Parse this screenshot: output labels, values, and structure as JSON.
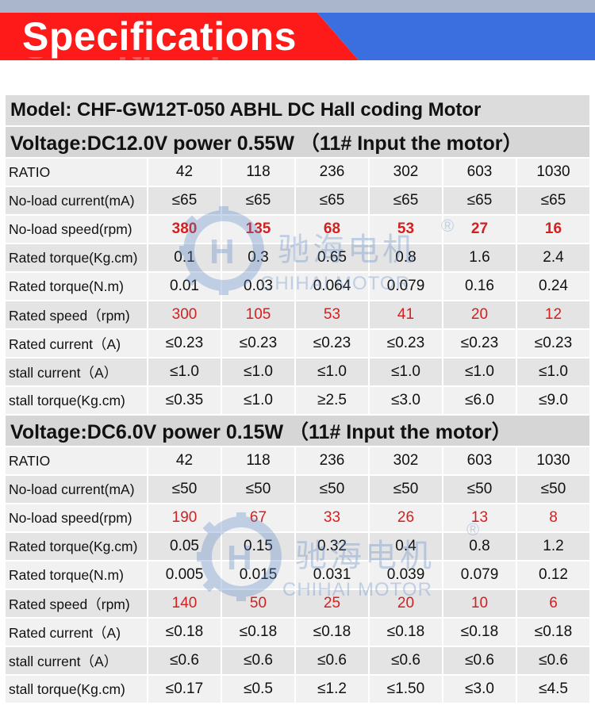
{
  "banner": {
    "title": "Specifications"
  },
  "model": "Model: CHF-GW12T-050 ABHL  DC Hall coding Motor",
  "watermark": {
    "cn": "驰海电机",
    "en": "CHIHAI MOTOR",
    "mark": "®"
  },
  "sections": [
    {
      "heading": "Voltage:DC12.0V  power 0.55W  （11# Input the motor）",
      "rows": [
        {
          "label": "RATIO",
          "values": [
            "42",
            "118",
            "236",
            "302",
            "603",
            "1030"
          ],
          "style": ""
        },
        {
          "label": "No-load current(mA)",
          "values": [
            "≤65",
            "≤65",
            "≤65",
            "≤65",
            "≤65",
            "≤65"
          ],
          "style": ""
        },
        {
          "label": "No-load speed(rpm)",
          "values": [
            "380",
            "135",
            "68",
            "53",
            "27",
            "16"
          ],
          "style": "red bold"
        },
        {
          "label": "Rated torque(Kg.cm)",
          "values": [
            "0.1",
            "0.3",
            "0.65",
            "0.8",
            "1.6",
            "2.4"
          ],
          "style": ""
        },
        {
          "label": "Rated torque(N.m)",
          "values": [
            "0.01",
            "0.03",
            "0.064",
            "0.079",
            "0.16",
            "0.24"
          ],
          "style": ""
        },
        {
          "label": "Rated speed（rpm)",
          "values": [
            "300",
            "105",
            "53",
            "41",
            "20",
            "12"
          ],
          "style": "red"
        },
        {
          "label": "Rated current（A)",
          "values": [
            "≤0.23",
            "≤0.23",
            "≤0.23",
            "≤0.23",
            "≤0.23",
            "≤0.23"
          ],
          "style": ""
        },
        {
          "label": "stall current（A）",
          "values": [
            "≤1.0",
            "≤1.0",
            "≤1.0",
            "≤1.0",
            "≤1.0",
            "≤1.0"
          ],
          "style": ""
        },
        {
          "label": "stall torque(Kg.cm)",
          "values": [
            "≤0.35",
            "≤1.0",
            "≥2.5",
            "≤3.0",
            "≤6.0",
            "≤9.0"
          ],
          "style": ""
        }
      ]
    },
    {
      "heading": "Voltage:DC6.0V  power 0.15W  （11# Input the motor）",
      "rows": [
        {
          "label": "RATIO",
          "values": [
            "42",
            "118",
            "236",
            "302",
            "603",
            "1030"
          ],
          "style": ""
        },
        {
          "label": "No-load current(mA)",
          "values": [
            "≤50",
            "≤50",
            "≤50",
            "≤50",
            "≤50",
            "≤50"
          ],
          "style": ""
        },
        {
          "label": "No-load speed(rpm)",
          "values": [
            "190",
            "67",
            "33",
            "26",
            "13",
            "8"
          ],
          "style": "red"
        },
        {
          "label": "Rated torque(Kg.cm)",
          "values": [
            "0.05",
            "0.15",
            "0.32",
            "0.4",
            "0.8",
            "1.2"
          ],
          "style": ""
        },
        {
          "label": "Rated torque(N.m)",
          "values": [
            "0.005",
            "0.015",
            "0.031",
            "0.039",
            "0.079",
            "0.12"
          ],
          "style": ""
        },
        {
          "label": "Rated speed（rpm)",
          "values": [
            "140",
            "50",
            "25",
            "20",
            "10",
            "6"
          ],
          "style": "red"
        },
        {
          "label": "Rated current（A)",
          "values": [
            "≤0.18",
            "≤0.18",
            "≤0.18",
            "≤0.18",
            "≤0.18",
            "≤0.18"
          ],
          "style": ""
        },
        {
          "label": "stall current（A）",
          "values": [
            "≤0.6",
            "≤0.6",
            "≤0.6",
            "≤0.6",
            "≤0.6",
            "≤0.6"
          ],
          "style": ""
        },
        {
          "label": "stall torque(Kg.cm)",
          "values": [
            "≤0.17",
            "≤0.5",
            "≤1.2",
            "≤1.50",
            "≤3.0",
            "≤4.5"
          ],
          "style": ""
        }
      ]
    }
  ],
  "colors": {
    "banner_red": "#ff1a1a",
    "banner_blue": "#3b6fe0",
    "value_red": "#d32020"
  }
}
